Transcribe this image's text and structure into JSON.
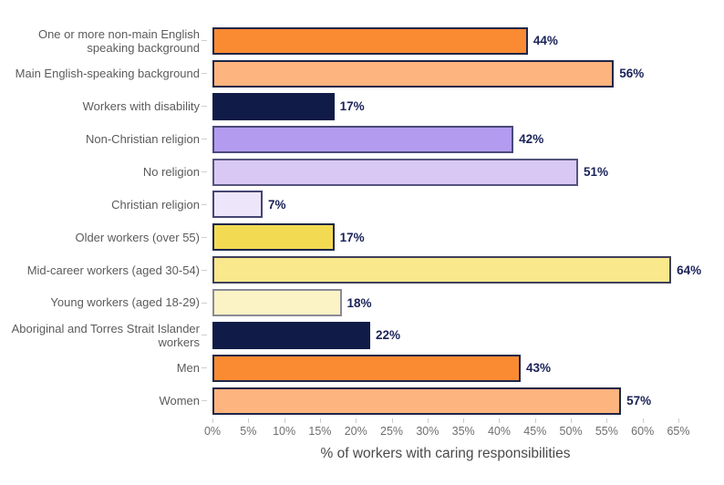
{
  "chart_data": {
    "type": "bar",
    "orientation": "horizontal",
    "title": "",
    "xlabel": "% of workers with caring responsibilities",
    "ylabel": "",
    "xlim": [
      0,
      65
    ],
    "grid": false,
    "legend": false,
    "x_tick_values": [
      0,
      5,
      10,
      15,
      20,
      25,
      30,
      35,
      40,
      45,
      50,
      55,
      60,
      65
    ],
    "x_tick_labels": [
      "0%",
      "5%",
      "10%",
      "15%",
      "20%",
      "25%",
      "30%",
      "35%",
      "40%",
      "45%",
      "50%",
      "55%",
      "60%",
      "65%"
    ],
    "categories": [
      "One or more non-main English\nspeaking background",
      "Main English-speaking background",
      "Workers with disability",
      "Non-Christian religion",
      "No religion",
      "Christian religion",
      "Older workers (over 55)",
      "Mid-career workers (aged 30-54)",
      "Young workers (aged 18-29)",
      "Aboriginal and Torres Strait Islander\nworkers",
      "Men",
      "Women"
    ],
    "values": [
      44,
      56,
      17,
      42,
      51,
      7,
      17,
      64,
      18,
      22,
      43,
      57
    ],
    "value_labels": [
      "44%",
      "56%",
      "17%",
      "42%",
      "51%",
      "7%",
      "17%",
      "64%",
      "18%",
      "22%",
      "43%",
      "57%"
    ],
    "bar_colors": [
      "#fa8b32",
      "#feb47e",
      "#101c47",
      "#b39cef",
      "#d9c8f4",
      "#ede6fa",
      "#f2db53",
      "#f9e88c",
      "#fbf2c5",
      "#101c47",
      "#fa8b32",
      "#feb47e"
    ],
    "bar_border_colors": [
      "#1d2649",
      "#1d2649",
      "#101c47",
      "#4a4979",
      "#55547e",
      "#454574",
      "#1d2649",
      "#3f3f5a",
      "#8a8a96",
      "#101c47",
      "#1d2649",
      "#1d2649"
    ]
  },
  "styles": {
    "category_label_color": "#5b5b5b",
    "value_label_color": "#1a2258",
    "tick_label_color": "#6e6e6e",
    "axis_title_color": "#4a4a4a",
    "tick_mark_color": "#cccccc",
    "background_color": "#ffffff"
  }
}
